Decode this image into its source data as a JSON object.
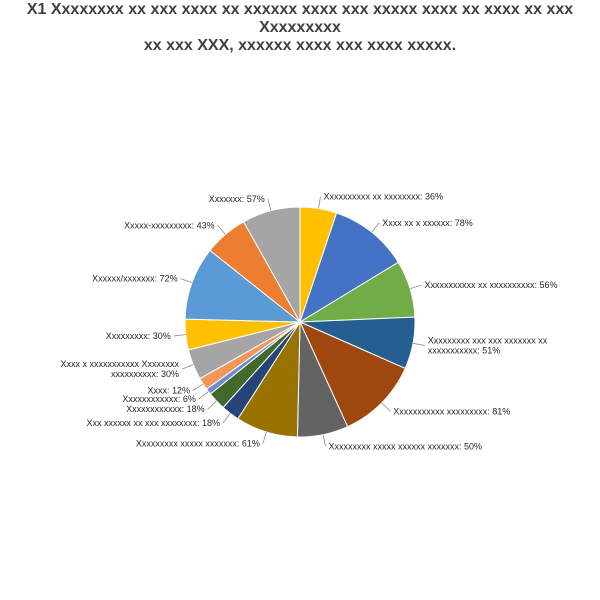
{
  "title": "X1 Xxxxxxxx xx xxx xxxx xx xxxxxx xxxx xxx xxxxx xxxx xx xxxx xx xxx Xxxxxxxxx\nxx xxx XXX, xxxxxx xxxx xxx xxxx xxxxx.",
  "chart_data": {
    "type": "pie",
    "title": "X1 Xxxxxxxx xx xxx xxxx xx xxxxxx xxxx xxx xxxxx xxxx xx xxxx xx xxx Xxxxxxxxx xx xxx XXX, xxxxxx xxxx xxx xxxx xxxxx.",
    "slices": [
      {
        "label": "Xxxxxxxxxx xx xxxxxxxx: 36%",
        "name": "Xxxxxxxxxx xx xxxxxxxx",
        "value": 36,
        "color": "#FFC000"
      },
      {
        "label": "Xxxx xx x xxxxxx: 78%",
        "name": "Xxxx xx x xxxxxx",
        "value": 78,
        "color": "#4472C4"
      },
      {
        "label": "Xxxxxxxxxxx xx xxxxxxxxxx: 56%",
        "name": "Xxxxxxxxxxx xx xxxxxxxxxx",
        "value": 56,
        "color": "#70AD47"
      },
      {
        "label": "Xxxxxxxxx xxx xxx xxxxxxx xx\nxxxxxxxxxxx: 51%",
        "name": "Xxxxxxxxx xxx xxx xxxxxxx xx xxxxxxxxxxx",
        "value": 51,
        "color": "#255E91"
      },
      {
        "label": "Xxxxxxxxxxx xxxxxxxxx: 81%",
        "name": "Xxxxxxxxxxx xxxxxxxxx",
        "value": 81,
        "color": "#9E480E"
      },
      {
        "label": "Xxxxxxxxx xxxxx xxxxxx xxxxxxx: 50%",
        "name": "Xxxxxxxxx xxxxx xxxxxx xxxxxxx",
        "value": 50,
        "color": "#636363"
      },
      {
        "label": "Xxxxxxxxx xxxxx xxxxxxx: 61%",
        "name": "Xxxxxxxxx xxxxx xxxxxxx",
        "value": 61,
        "color": "#997300"
      },
      {
        "label": "Xxx xxxxxx xx xxx xxxxxxxx: 18%",
        "name": "Xxx xxxxxx xx xxx xxxxxxxx",
        "value": 18,
        "color": "#264478"
      },
      {
        "label": "Xxxxxxxxxxxx: 18%",
        "name": "Xxxxxxxxxxxx",
        "value": 18,
        "color": "#43682B"
      },
      {
        "label": "Xxxxxxxxxxxx: 6%",
        "name": "Xxxxxxxxxxxx",
        "value": 6,
        "color": "#698ED0"
      },
      {
        "label": "Xxxx: 12%",
        "name": "Xxxx",
        "value": 12,
        "color": "#F1975A"
      },
      {
        "label": "Xxxx x xxxxxxxxxxx Xxxxxxxx\nxxxxxxxxxx: 30%",
        "name": "Xxxx x xxxxxxxxxxx Xxxxxxxx xxxxxxxxxx",
        "value": 30,
        "color": "#A5A5A5"
      },
      {
        "label": "Xxxxxxxxx: 30%",
        "name": "Xxxxxxxxx",
        "value": 30,
        "color": "#FFC000"
      },
      {
        "label": "Xxxxxx/xxxxxxx: 72%",
        "name": "Xxxxxx/xxxxxxx",
        "value": 72,
        "color": "#5B9BD5"
      },
      {
        "label": "Xxxxx-xxxxxxxxx: 43%",
        "name": "Xxxxx-xxxxxxxxx",
        "value": 43,
        "color": "#ED7D31"
      },
      {
        "label": "Xxxxxxx: 57%",
        "name": "Xxxxxxx",
        "value": 57,
        "color": "#A5A5A5"
      }
    ]
  }
}
